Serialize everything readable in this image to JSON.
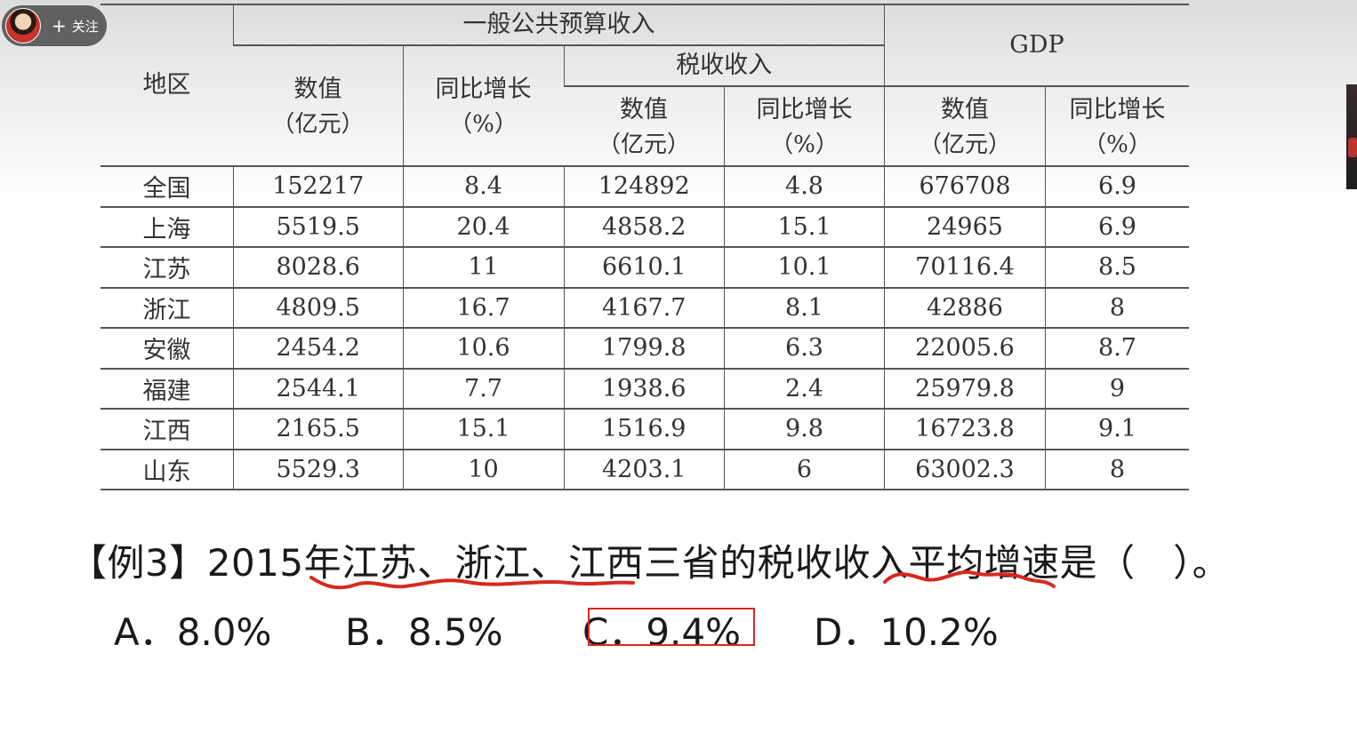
{
  "overlay": {
    "follow_label": "关注",
    "follow_plus": "+"
  },
  "table": {
    "headers": {
      "region": "地区",
      "budget_group": "一般公共预算收入",
      "tax_group": "税收收入",
      "gdp_group": "GDP",
      "value_label": "数值",
      "value_unit": "（亿元）",
      "growth_label": "同比增长",
      "growth_unit": "（%）"
    },
    "rows": [
      [
        "全国",
        "152217",
        "8.4",
        "124892",
        "4.8",
        "676708",
        "6.9"
      ],
      [
        "上海",
        "5519.5",
        "20.4",
        "4858.2",
        "15.1",
        "24965",
        "6.9"
      ],
      [
        "江苏",
        "8028.6",
        "11",
        "6610.1",
        "10.1",
        "70116.4",
        "8.5"
      ],
      [
        "浙江",
        "4809.5",
        "16.7",
        "4167.7",
        "8.1",
        "42886",
        "8"
      ],
      [
        "安徽",
        "2454.2",
        "10.6",
        "1799.8",
        "6.3",
        "22005.6",
        "8.7"
      ],
      [
        "福建",
        "2544.1",
        "7.7",
        "1938.6",
        "2.4",
        "25979.8",
        "9"
      ],
      [
        "江西",
        "2165.5",
        "15.1",
        "1516.9",
        "9.8",
        "16723.8",
        "9.1"
      ],
      [
        "山东",
        "5529.3",
        "10",
        "4203.1",
        "6",
        "63002.3",
        "8"
      ]
    ]
  },
  "question": {
    "text": "【例3】2015年江苏、浙江、江西三省的税收收入平均增速是（　）。"
  },
  "options": {
    "a": "A．8.0%",
    "b": "B．8.5%",
    "c": "C．9.4%",
    "d": "D．10.2%"
  },
  "annotation": {
    "ink_color": "#d9281e",
    "highlighted_option": "C"
  }
}
